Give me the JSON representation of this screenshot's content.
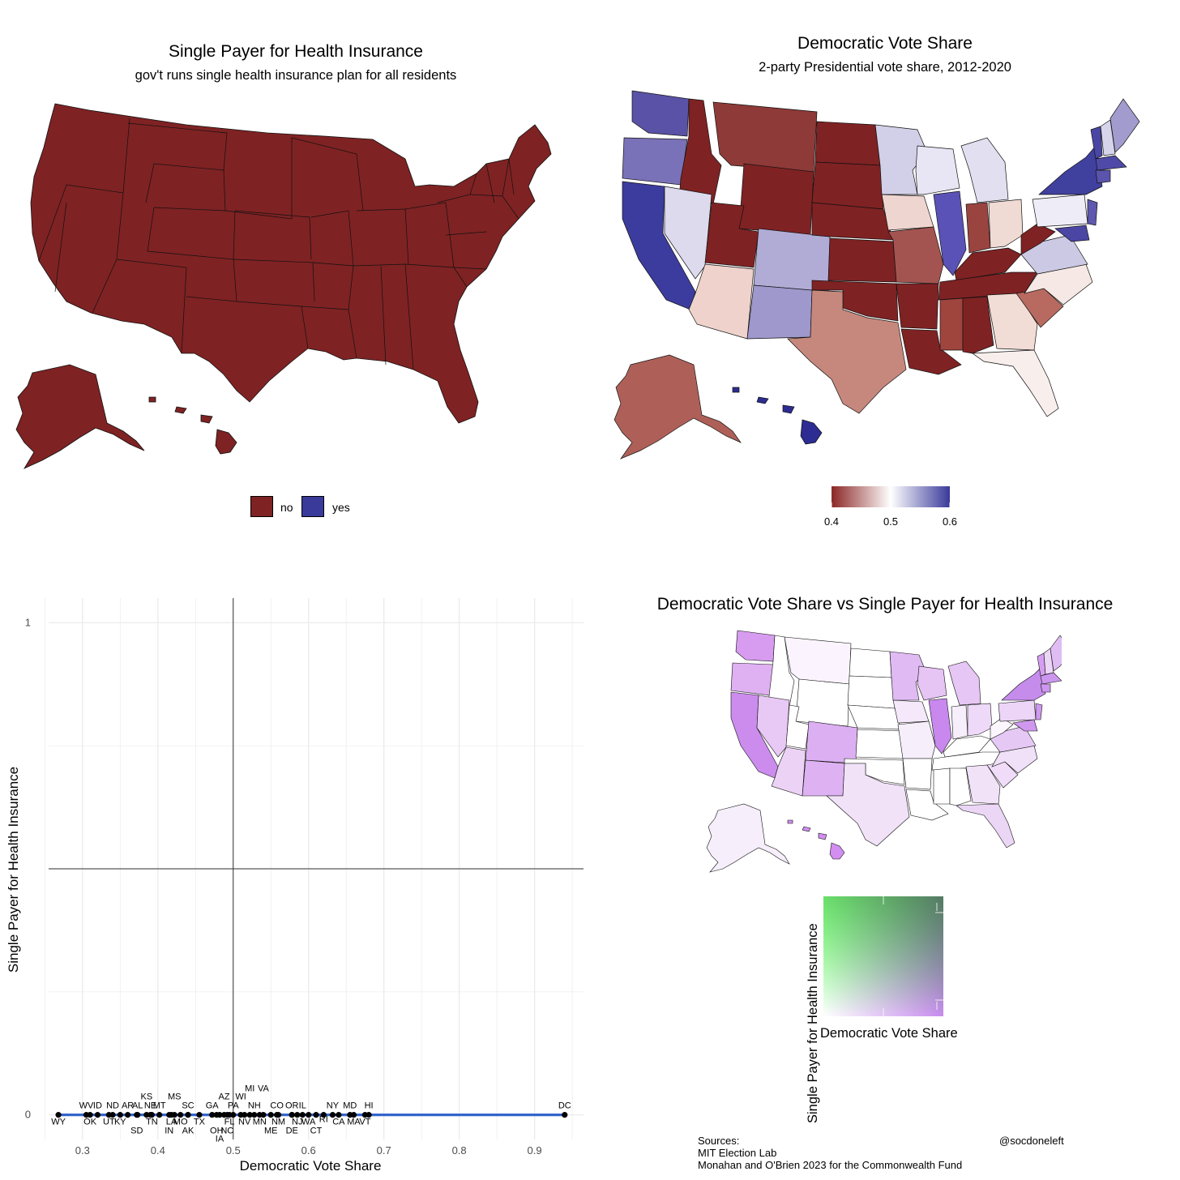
{
  "panels": {
    "single_payer_map": {
      "title": "Single Payer for Health Insurance",
      "subtitle": "gov't runs single health insurance plan for all residents",
      "legend": [
        {
          "label": "no",
          "color": "#7f2223"
        },
        {
          "label": "yes",
          "color": "#3a3a9a"
        }
      ]
    },
    "dem_share_map": {
      "title": "Democratic Vote Share",
      "subtitle": "2-party Presidential vote share, 2012-2020",
      "colorbar": {
        "ticks": [
          "0.4",
          "0.5",
          "0.6"
        ],
        "low_color": "#8b2626",
        "mid_color": "#ffffff",
        "high_color": "#3a3a9a"
      }
    },
    "bivariate_map": {
      "title": "Democratic Vote Share vs Single Payer for Health Insurance",
      "legend_xlabel": "Democratic Vote Share",
      "legend_ylabel": "Single Payer for Health Insurance"
    }
  },
  "chart_data": {
    "type": "scatter",
    "xlabel": "Democratic Vote Share",
    "ylabel": "Single Payer for Health Insurance",
    "xlim": [
      0.255,
      0.965
    ],
    "ylim": [
      -0.05,
      1.05
    ],
    "xticks": [
      "0.3",
      "0.4",
      "0.5",
      "0.6",
      "0.7",
      "0.8",
      "0.9"
    ],
    "yticks": [
      "0",
      "1"
    ],
    "vline_x": 0.5,
    "hline_y": 0.5,
    "fit_line_color": "#3366cc",
    "points": [
      {
        "label": "WY",
        "x": 0.268,
        "y": 0,
        "pos": "below"
      },
      {
        "label": "WV",
        "x": 0.305,
        "y": 0,
        "pos": "above"
      },
      {
        "label": "OK",
        "x": 0.31,
        "y": 0,
        "pos": "below"
      },
      {
        "label": "ID",
        "x": 0.32,
        "y": 0,
        "pos": "above"
      },
      {
        "label": "UT",
        "x": 0.335,
        "y": 0,
        "pos": "below"
      },
      {
        "label": "ND",
        "x": 0.34,
        "y": 0,
        "pos": "above"
      },
      {
        "label": "KY",
        "x": 0.35,
        "y": 0,
        "pos": "below"
      },
      {
        "label": "AR",
        "x": 0.36,
        "y": 0,
        "pos": "above"
      },
      {
        "label": "SD",
        "x": 0.372,
        "y": 0,
        "pos": "below2"
      },
      {
        "label": "AL",
        "x": 0.373,
        "y": 0,
        "pos": "above"
      },
      {
        "label": "KS",
        "x": 0.385,
        "y": 0,
        "pos": "above2"
      },
      {
        "label": "NE",
        "x": 0.39,
        "y": 0,
        "pos": "above"
      },
      {
        "label": "TN",
        "x": 0.392,
        "y": 0,
        "pos": "below"
      },
      {
        "label": "MT",
        "x": 0.402,
        "y": 0,
        "pos": "above"
      },
      {
        "label": "IN",
        "x": 0.415,
        "y": 0,
        "pos": "below2"
      },
      {
        "label": "MS",
        "x": 0.422,
        "y": 0,
        "pos": "above2"
      },
      {
        "label": "LA",
        "x": 0.418,
        "y": 0,
        "pos": "below"
      },
      {
        "label": "MO",
        "x": 0.43,
        "y": 0,
        "pos": "below"
      },
      {
        "label": "SC",
        "x": 0.44,
        "y": 0,
        "pos": "above"
      },
      {
        "label": "AK",
        "x": 0.44,
        "y": 0,
        "pos": "below2"
      },
      {
        "label": "TX",
        "x": 0.455,
        "y": 0,
        "pos": "below"
      },
      {
        "label": "GA",
        "x": 0.472,
        "y": 0,
        "pos": "above"
      },
      {
        "label": "OH",
        "x": 0.478,
        "y": 0,
        "pos": "below2"
      },
      {
        "label": "IA",
        "x": 0.482,
        "y": 0,
        "pos": "below3"
      },
      {
        "label": "AZ",
        "x": 0.488,
        "y": 0,
        "pos": "above2"
      },
      {
        "label": "NC",
        "x": 0.492,
        "y": 0,
        "pos": "below2"
      },
      {
        "label": "FL",
        "x": 0.495,
        "y": 0,
        "pos": "below"
      },
      {
        "label": "PA",
        "x": 0.5,
        "y": 0,
        "pos": "above"
      },
      {
        "label": "WI",
        "x": 0.51,
        "y": 0,
        "pos": "above2"
      },
      {
        "label": "NV",
        "x": 0.515,
        "y": 0,
        "pos": "below"
      },
      {
        "label": "MI",
        "x": 0.522,
        "y": 0,
        "pos": "above3"
      },
      {
        "label": "NH",
        "x": 0.528,
        "y": 0,
        "pos": "above"
      },
      {
        "label": "MN",
        "x": 0.535,
        "y": 0,
        "pos": "below"
      },
      {
        "label": "VA",
        "x": 0.54,
        "y": 0,
        "pos": "above3"
      },
      {
        "label": "ME",
        "x": 0.55,
        "y": 0,
        "pos": "below2"
      },
      {
        "label": "NM",
        "x": 0.56,
        "y": 0,
        "pos": "below"
      },
      {
        "label": "CO",
        "x": 0.558,
        "y": 0,
        "pos": "above"
      },
      {
        "label": "OR",
        "x": 0.578,
        "y": 0,
        "pos": "above"
      },
      {
        "label": "DE",
        "x": 0.578,
        "y": 0,
        "pos": "below2"
      },
      {
        "label": "NJ",
        "x": 0.585,
        "y": 0,
        "pos": "below"
      },
      {
        "label": "IL",
        "x": 0.592,
        "y": 0,
        "pos": "above"
      },
      {
        "label": "WA",
        "x": 0.6,
        "y": 0,
        "pos": "below"
      },
      {
        "label": "CT",
        "x": 0.61,
        "y": 0,
        "pos": "below2"
      },
      {
        "label": "RI",
        "x": 0.62,
        "y": 0,
        "pos": "below0"
      },
      {
        "label": "NY",
        "x": 0.632,
        "y": 0,
        "pos": "above"
      },
      {
        "label": "CA",
        "x": 0.64,
        "y": 0,
        "pos": "below"
      },
      {
        "label": "MD",
        "x": 0.655,
        "y": 0,
        "pos": "above"
      },
      {
        "label": "MA",
        "x": 0.66,
        "y": 0,
        "pos": "below"
      },
      {
        "label": "VT",
        "x": 0.675,
        "y": 0,
        "pos": "below"
      },
      {
        "label": "HI",
        "x": 0.68,
        "y": 0,
        "pos": "above"
      },
      {
        "label": "DC",
        "x": 0.94,
        "y": 0,
        "pos": "above"
      }
    ]
  },
  "sources": {
    "heading": "Sources:",
    "lines": [
      "MIT Election Lab",
      "Monahan and O'Brien 2023 for the Commonwealth Fund"
    ],
    "handle": "@socdoneleft"
  }
}
